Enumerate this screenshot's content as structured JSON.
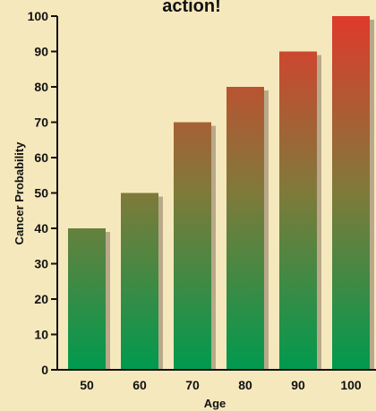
{
  "chart_data": {
    "type": "bar",
    "title": "action!",
    "xlabel": "Age",
    "ylabel": "Cancer Probability",
    "categories": [
      "50",
      "60",
      "70",
      "80",
      "90",
      "100"
    ],
    "values": [
      40,
      50,
      70,
      80,
      90,
      100
    ],
    "ylim": [
      0,
      100
    ],
    "yticks": [
      0,
      10,
      20,
      30,
      40,
      50,
      60,
      70,
      80,
      90,
      100
    ],
    "grid": false,
    "legend": "none",
    "colors": {
      "background": "#f6e8bd",
      "bar_bottom": "#009a4e",
      "bar_mid": "#7f7a3a",
      "bar_top": "#df3a2c",
      "bar_shadow": "#b9a98a",
      "axis": "#111111"
    }
  }
}
